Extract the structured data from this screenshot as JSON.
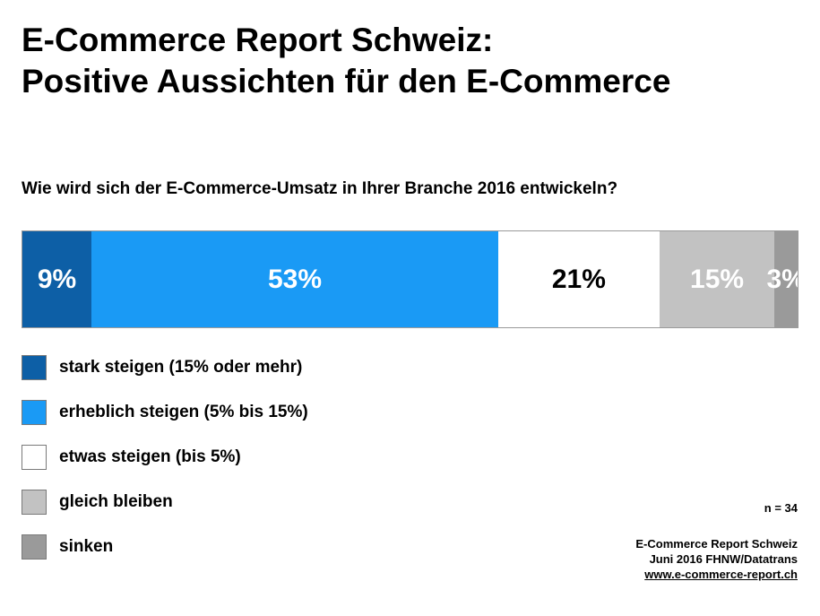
{
  "title_line1": "E-Commerce Report Schweiz:",
  "title_line2": "Positive Aussichten für den E-Commerce",
  "question": "Wie wird sich der E-Commerce-Umsatz  in Ihrer Branche 2016 entwickeln?",
  "chart_data": {
    "type": "bar",
    "orientation": "horizontal-stacked-100",
    "categories": [
      "stark steigen (15% oder mehr)",
      "erheblich steigen (5% bis 15%)",
      "etwas steigen (bis 5%)",
      "gleich bleiben",
      "sinken"
    ],
    "values": [
      9,
      53,
      21,
      15,
      3
    ],
    "data_labels": [
      "9%",
      "53%",
      "21%",
      "15%",
      "3%"
    ],
    "colors": [
      "#0d5fa6",
      "#1a9af5",
      "#ffffff",
      "#c2c2c2",
      "#9a9a9a"
    ],
    "label_colors": [
      "#ffffff",
      "#ffffff",
      "#000000",
      "#ffffff",
      "#ffffff"
    ],
    "legend_placement": "bottom-left"
  },
  "n_note": "n = 34",
  "source": {
    "line1": "E-Commerce Report Schweiz",
    "line2": "Juni 2016 FHNW/Datatrans",
    "link": "www.e-commerce-report.ch"
  }
}
